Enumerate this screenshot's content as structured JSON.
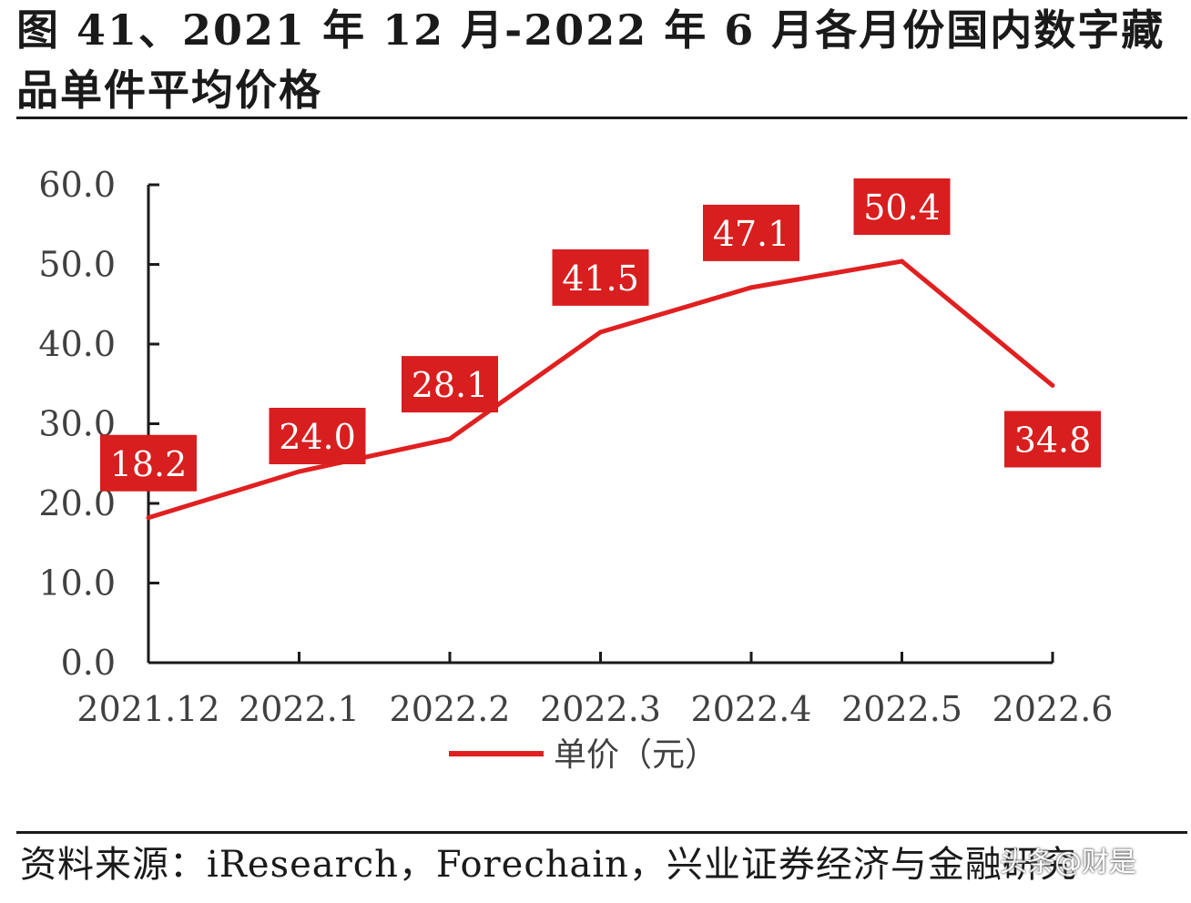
{
  "title": "图 41、2021 年 12 月-2022 年 6 月各月份国内数字藏品单件平均价格",
  "source": "资料来源：iResearch，Forechain，兴业证券经济与金融研究",
  "watermark": "头条@财是",
  "colors": {
    "series": "#e02020",
    "label_bg": "#d81e1e",
    "label_text": "#ffffff",
    "axis": "#1a1a1a",
    "tick_text": "#404040"
  },
  "chart_data": {
    "type": "line",
    "categories": [
      "2021.12",
      "2022.1",
      "2022.2",
      "2022.3",
      "2022.4",
      "2022.5",
      "2022.6"
    ],
    "series": [
      {
        "name": "单价（元）",
        "values": [
          18.2,
          24.0,
          28.1,
          41.5,
          47.1,
          50.4,
          34.8
        ]
      }
    ],
    "data_labels": [
      "18.2",
      "24.0",
      "28.1",
      "41.5",
      "47.1",
      "50.4",
      "34.8"
    ],
    "yticks": [
      "0.0",
      "10.0",
      "20.0",
      "30.0",
      "40.0",
      "50.0",
      "60.0"
    ],
    "ylim": [
      0,
      60
    ],
    "grid": false,
    "legend_position": "bottom"
  }
}
